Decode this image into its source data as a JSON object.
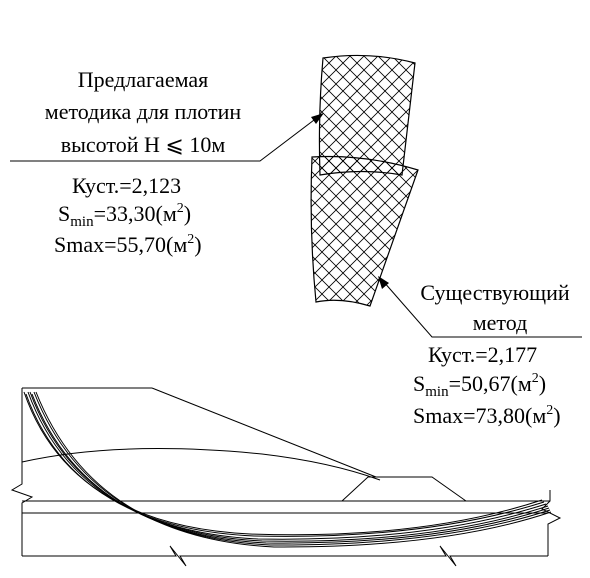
{
  "proposed": {
    "label_lines": [
      "Предлагаемая",
      "методика для плотин",
      "высотой H ⩽ 10м"
    ],
    "k_label": "Куст.=2,123",
    "smin": {
      "prefix": "S",
      "sub": "min",
      "value": "=33,30(м",
      "sup": "2",
      "suffix": ")"
    },
    "smax": {
      "text": "Smax=55,70(м",
      "sup": "2",
      "suffix": ")"
    }
  },
  "existing": {
    "label_lines": [
      "Существующий",
      "метод"
    ],
    "k_label": "Куст.=2,177",
    "smin": {
      "prefix": "S",
      "sub": "min",
      "value": "=50,67(м",
      "sup": "2",
      "suffix": ")"
    },
    "smax": {
      "text": "Smax=73,80(м",
      "sup": "2",
      "suffix": ")"
    }
  }
}
